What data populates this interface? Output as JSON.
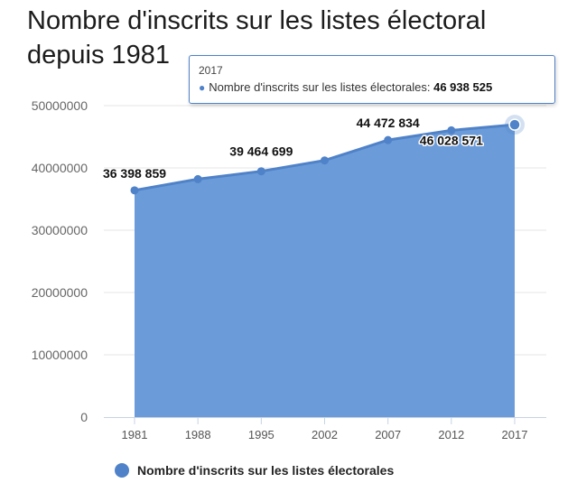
{
  "title": {
    "line1": "Nombre d'inscrits sur les listes électoral",
    "line2": "depuis 1981"
  },
  "chart_data": {
    "type": "area",
    "title": "Nombre d'inscrits sur les listes électoral depuis 1981",
    "categories": [
      "1981",
      "1988",
      "1995",
      "2002",
      "2007",
      "2012",
      "2017"
    ],
    "series": [
      {
        "name": "Nombre d'inscrits sur les listes électorales",
        "values": [
          36398859,
          38200000,
          39464699,
          41200000,
          44472834,
          46028571,
          46938525
        ],
        "data_labels": [
          "36 398 859",
          "",
          "39 464 699",
          "",
          "44 472 834",
          "46 028 571",
          ""
        ]
      }
    ],
    "y_ticks": [
      "0",
      "10000000",
      "20000000",
      "30000000",
      "40000000",
      "50000000"
    ],
    "ylim": [
      0,
      50000000
    ],
    "grid": true,
    "legend": "bottom-left",
    "colors": {
      "series": "#4f82c8",
      "area": "#6b9bd8",
      "grid": "#e6e6e6"
    }
  },
  "tooltip": {
    "x": "2017",
    "series": "Nombre d'inscrits sur les listes électorales:",
    "value": "46 938 525"
  }
}
